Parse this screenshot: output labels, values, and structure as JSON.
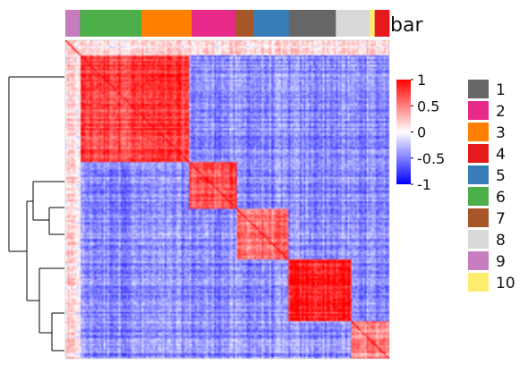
{
  "chart_data": {
    "type": "heatmap",
    "title": "",
    "annotation_bar": {
      "label": "bar",
      "segments": [
        {
          "group": "9",
          "span": 0.045
        },
        {
          "group": "6",
          "span": 0.19
        },
        {
          "group": "3",
          "span": 0.155
        },
        {
          "group": "2",
          "span": 0.135
        },
        {
          "group": "7",
          "span": 0.055
        },
        {
          "group": "5",
          "span": 0.11
        },
        {
          "group": "1",
          "span": 0.145
        },
        {
          "group": "8",
          "span": 0.105
        },
        {
          "group": "10",
          "span": 0.015
        },
        {
          "group": "4",
          "span": 0.045
        }
      ]
    },
    "blocks": [
      {
        "from": 0.05,
        "to": 0.38,
        "level": 0.75
      },
      {
        "from": 0.38,
        "to": 0.53,
        "level": 0.7
      },
      {
        "from": 0.53,
        "to": 0.69,
        "level": 0.55
      },
      {
        "from": 0.69,
        "to": 0.88,
        "level": 0.9
      },
      {
        "from": 0.88,
        "to": 1.0,
        "level": 0.45
      }
    ],
    "color_scale": {
      "min": -1,
      "max": 1,
      "colors": [
        "#0000ff",
        "#ffffff",
        "#ff0000"
      ],
      "ticks": [
        "1",
        "0.5",
        "0",
        "-0.5",
        "-1"
      ]
    },
    "legend": {
      "position": "right",
      "items": [
        {
          "label": "1",
          "color": "#666666"
        },
        {
          "label": "2",
          "color": "#e7298a"
        },
        {
          "label": "3",
          "color": "#ff7f00"
        },
        {
          "label": "4",
          "color": "#e41a1c"
        },
        {
          "label": "5",
          "color": "#377eb8"
        },
        {
          "label": "6",
          "color": "#4daf4a"
        },
        {
          "label": "7",
          "color": "#a65628"
        },
        {
          "label": "8",
          "color": "#d9d9d9"
        },
        {
          "label": "9",
          "color": "#c77cbf"
        },
        {
          "label": "10",
          "color": "#ffed6f"
        }
      ]
    }
  }
}
